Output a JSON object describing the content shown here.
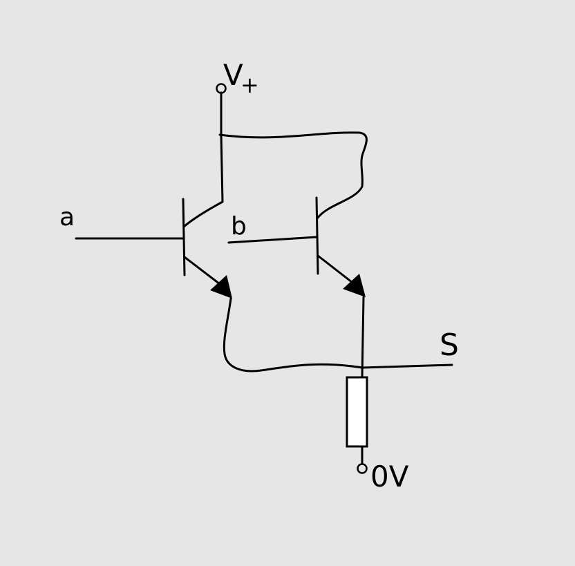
{
  "diagram": {
    "labels": {
      "supply": "V",
      "supply_sign": "+",
      "input_a": "a",
      "input_b": "b",
      "output": "S",
      "ground": "0V"
    },
    "colors": {
      "background": "#e6e6e6",
      "ink": "#000000",
      "resistor_fill": "#ffffff"
    }
  }
}
